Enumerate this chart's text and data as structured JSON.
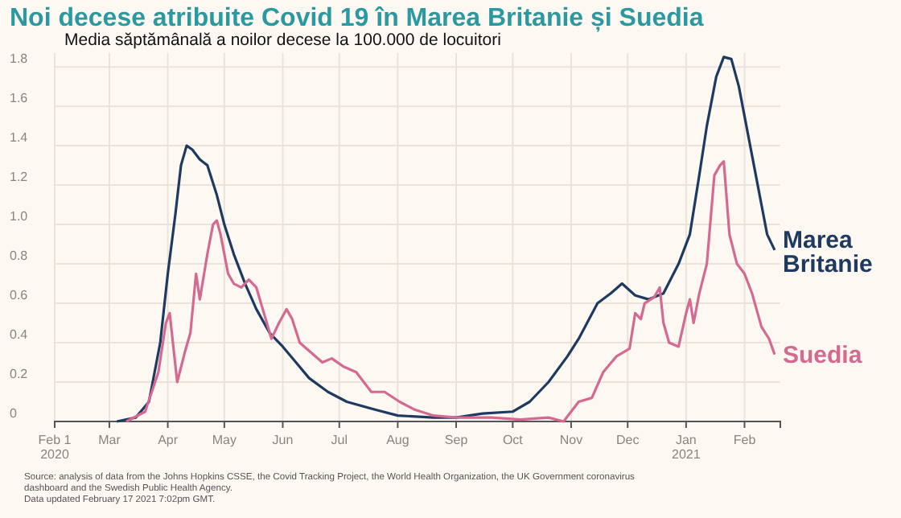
{
  "chart_data": {
    "type": "line",
    "title": "Noi decese atribuite Covid 19 în Marea Britanie și Suedia",
    "subtitle": "Media săptămânală a noilor decese la 100.000 de locuitori",
    "xlim": [
      "2020-02-01",
      "2021-02-20"
    ],
    "xticks": [
      {
        "value": "2020-02-01",
        "label": "Feb 1\n2020"
      },
      {
        "value": "2020-03-01",
        "label": "Mar"
      },
      {
        "value": "2020-04-01",
        "label": "Apr"
      },
      {
        "value": "2020-05-01",
        "label": "May"
      },
      {
        "value": "2020-06-01",
        "label": "Jun"
      },
      {
        "value": "2020-07-01",
        "label": "Jul"
      },
      {
        "value": "2020-08-01",
        "label": "Aug"
      },
      {
        "value": "2020-09-01",
        "label": "Sep"
      },
      {
        "value": "2020-10-01",
        "label": "Oct"
      },
      {
        "value": "2020-11-01",
        "label": "Nov"
      },
      {
        "value": "2020-12-01",
        "label": "Dec"
      },
      {
        "value": "2021-01-01",
        "label": "Jan\n2021"
      },
      {
        "value": "2021-02-01",
        "label": "Feb"
      }
    ],
    "ylim": [
      0,
      1.87
    ],
    "yticks": [
      0,
      0.2,
      0.4,
      0.6,
      0.8,
      {
        "value": 1,
        "label": "1.0"
      },
      1.2,
      1.4,
      1.6,
      1.8
    ],
    "grid": true,
    "line_style": "solid",
    "series": [
      {
        "name": "Marea Britanie",
        "color": "#1f3a60",
        "x": [
          "2020-03-05",
          "2020-03-15",
          "2020-03-22",
          "2020-03-28",
          "2020-04-01",
          "2020-04-05",
          "2020-04-08",
          "2020-04-11",
          "2020-04-14",
          "2020-04-18",
          "2020-04-22",
          "2020-04-27",
          "2020-05-01",
          "2020-05-06",
          "2020-05-12",
          "2020-05-18",
          "2020-05-25",
          "2020-06-01",
          "2020-06-08",
          "2020-06-15",
          "2020-06-25",
          "2020-07-05",
          "2020-07-20",
          "2020-08-01",
          "2020-08-20",
          "2020-09-01",
          "2020-09-15",
          "2020-10-01",
          "2020-10-10",
          "2020-10-20",
          "2020-10-30",
          "2020-11-05",
          "2020-11-15",
          "2020-11-22",
          "2020-11-28",
          "2020-12-05",
          "2020-12-12",
          "2020-12-20",
          "2020-12-28",
          "2021-01-03",
          "2021-01-08",
          "2021-01-12",
          "2021-01-17",
          "2021-01-21",
          "2021-01-25",
          "2021-01-29",
          "2021-02-03",
          "2021-02-08",
          "2021-02-13",
          "2021-02-17"
        ],
        "values": [
          0,
          0.02,
          0.1,
          0.4,
          0.75,
          1.05,
          1.3,
          1.4,
          1.38,
          1.33,
          1.3,
          1.15,
          1.0,
          0.85,
          0.7,
          0.57,
          0.45,
          0.38,
          0.3,
          0.22,
          0.15,
          0.1,
          0.06,
          0.03,
          0.02,
          0.02,
          0.04,
          0.05,
          0.1,
          0.2,
          0.33,
          0.42,
          0.6,
          0.65,
          0.7,
          0.64,
          0.62,
          0.65,
          0.8,
          0.95,
          1.25,
          1.5,
          1.75,
          1.85,
          1.84,
          1.7,
          1.45,
          1.2,
          0.95,
          0.87
        ]
      },
      {
        "name": "Suedia",
        "color": "#d46a92",
        "x": [
          "2020-03-10",
          "2020-03-20",
          "2020-03-27",
          "2020-03-31",
          "2020-04-02",
          "2020-04-06",
          "2020-04-10",
          "2020-04-13",
          "2020-04-16",
          "2020-04-18",
          "2020-04-22",
          "2020-04-25",
          "2020-04-27",
          "2020-04-29",
          "2020-05-03",
          "2020-05-06",
          "2020-05-10",
          "2020-05-14",
          "2020-05-18",
          "2020-05-22",
          "2020-05-26",
          "2020-05-30",
          "2020-06-03",
          "2020-06-06",
          "2020-06-10",
          "2020-06-16",
          "2020-06-22",
          "2020-06-27",
          "2020-07-03",
          "2020-07-10",
          "2020-07-18",
          "2020-07-25",
          "2020-08-02",
          "2020-08-10",
          "2020-08-20",
          "2020-09-01",
          "2020-09-20",
          "2020-10-05",
          "2020-10-20",
          "2020-10-28",
          "2020-11-05",
          "2020-11-12",
          "2020-11-18",
          "2020-11-25",
          "2020-12-02",
          "2020-12-05",
          "2020-12-08",
          "2020-12-10",
          "2020-12-15",
          "2020-12-18",
          "2020-12-20",
          "2020-12-23",
          "2020-12-28",
          "2021-01-01",
          "2021-01-03",
          "2021-01-05",
          "2021-01-08",
          "2021-01-12",
          "2021-01-16",
          "2021-01-19",
          "2021-01-21",
          "2021-01-24",
          "2021-01-28",
          "2021-02-01",
          "2021-02-05",
          "2021-02-10",
          "2021-02-14",
          "2021-02-17"
        ],
        "values": [
          0,
          0.05,
          0.25,
          0.5,
          0.55,
          0.2,
          0.35,
          0.45,
          0.75,
          0.62,
          0.85,
          1.0,
          1.02,
          0.95,
          0.75,
          0.7,
          0.68,
          0.72,
          0.68,
          0.55,
          0.42,
          0.5,
          0.57,
          0.52,
          0.4,
          0.35,
          0.3,
          0.32,
          0.28,
          0.25,
          0.15,
          0.15,
          0.1,
          0.06,
          0.03,
          0.02,
          0.02,
          0.01,
          0.02,
          0,
          0.1,
          0.12,
          0.25,
          0.33,
          0.37,
          0.55,
          0.52,
          0.6,
          0.63,
          0.68,
          0.5,
          0.4,
          0.38,
          0.55,
          0.62,
          0.5,
          0.65,
          0.8,
          1.25,
          1.3,
          1.32,
          0.95,
          0.8,
          0.75,
          0.65,
          0.48,
          0.42,
          0.34
        ]
      }
    ],
    "annotations": [
      "Source: analysis of data from the Johns Hopkins CSSE, the Covid Tracking Project, the World Health Organization, the UK Government coronavirus dashboard and the Swedish Public Health Agency.",
      "Data updated February 17 2021 7:02pm GMT."
    ]
  }
}
